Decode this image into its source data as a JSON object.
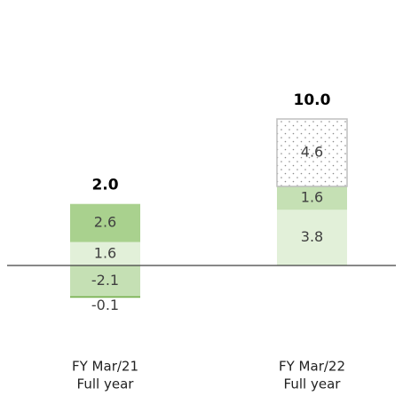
{
  "chart_data": {
    "type": "stacked_bar",
    "categories": [
      [
        "FY Mar/21",
        "Full year"
      ],
      [
        "FY Mar/22",
        "Full year"
      ]
    ],
    "series": [
      {
        "colors": [
          "#e2f0d9",
          "#e2f0d9"
        ],
        "values": [
          1.6,
          3.8
        ]
      },
      {
        "colors": [
          "#a9d18e",
          "#c5e0b4"
        ],
        "values": [
          2.6,
          1.6
        ]
      },
      {
        "colors": [
          "#ffffff",
          "#ffffff"
        ],
        "pattern": "dots",
        "values": [
          null,
          4.6
        ]
      },
      {
        "colors": [
          "#c5e0b4",
          "#c5e0b4"
        ],
        "values": [
          -2.1,
          null
        ]
      },
      {
        "colors": [
          "#70ad47",
          "#70ad47"
        ],
        "values": [
          -0.1,
          null
        ]
      }
    ],
    "totals": [
      2.0,
      10.0
    ],
    "total_labels": [
      "2.0",
      "10.0"
    ],
    "ylim": [
      -5,
      13
    ]
  }
}
